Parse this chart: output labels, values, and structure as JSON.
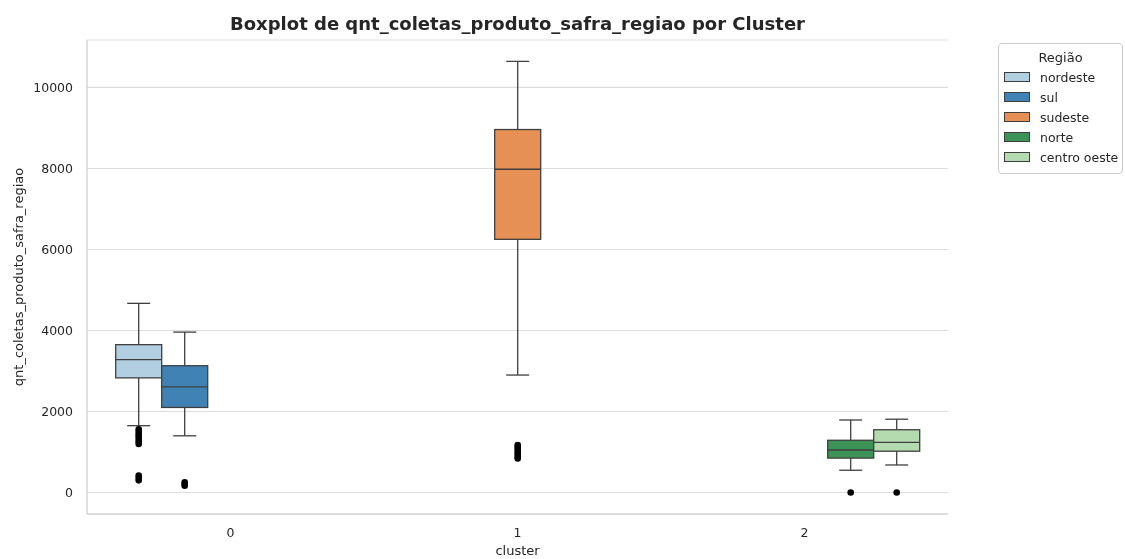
{
  "chart_data": {
    "type": "box",
    "title": "Boxplot de qnt_coletas_produto_safra_regiao por Cluster",
    "xlabel": "cluster",
    "ylabel": "qnt_coletas_produto_safra_regiao",
    "legend_title": "Região",
    "categories": [
      "0",
      "1",
      "2"
    ],
    "series": [
      {
        "name": "nordeste",
        "color": "#b2cfe2",
        "boxes": [
          {
            "low": 1650,
            "q1": 2830,
            "median": 3280,
            "q3": 3650,
            "high": 4670,
            "outliers": [
              1560,
              1500,
              1440,
              1380,
              1320,
              1260,
              1200,
              420,
              360,
              300
            ]
          },
          null,
          null
        ]
      },
      {
        "name": "sul",
        "color": "#4182b4",
        "boxes": [
          {
            "low": 1400,
            "q1": 2100,
            "median": 2610,
            "q3": 3130,
            "high": 3960,
            "outliers": [
              250,
              210,
              170
            ]
          },
          null,
          null
        ]
      },
      {
        "name": "sudeste",
        "color": "#e69055",
        "boxes": [
          null,
          {
            "low": 2900,
            "q1": 6250,
            "median": 7980,
            "q3": 8960,
            "high": 10640,
            "outliers": [
              1170,
              1120,
              1060,
              1000,
              950,
              890,
              840
            ]
          },
          null
        ]
      },
      {
        "name": "norte",
        "color": "#3d9257",
        "boxes": [
          null,
          null,
          {
            "low": 550,
            "q1": 850,
            "median": 1050,
            "q3": 1290,
            "high": 1790,
            "outliers": [
              0
            ]
          }
        ]
      },
      {
        "name": "centro oeste",
        "color": "#b3dbaf",
        "boxes": [
          null,
          null,
          {
            "low": 680,
            "q1": 1020,
            "median": 1240,
            "q3": 1550,
            "high": 1810,
            "outliers": [
              0
            ]
          }
        ]
      }
    ],
    "ylim": [
      -530,
      11170
    ],
    "yticks": [
      0,
      2000,
      4000,
      6000,
      8000,
      10000
    ],
    "grid": "y",
    "legend": "top right"
  }
}
